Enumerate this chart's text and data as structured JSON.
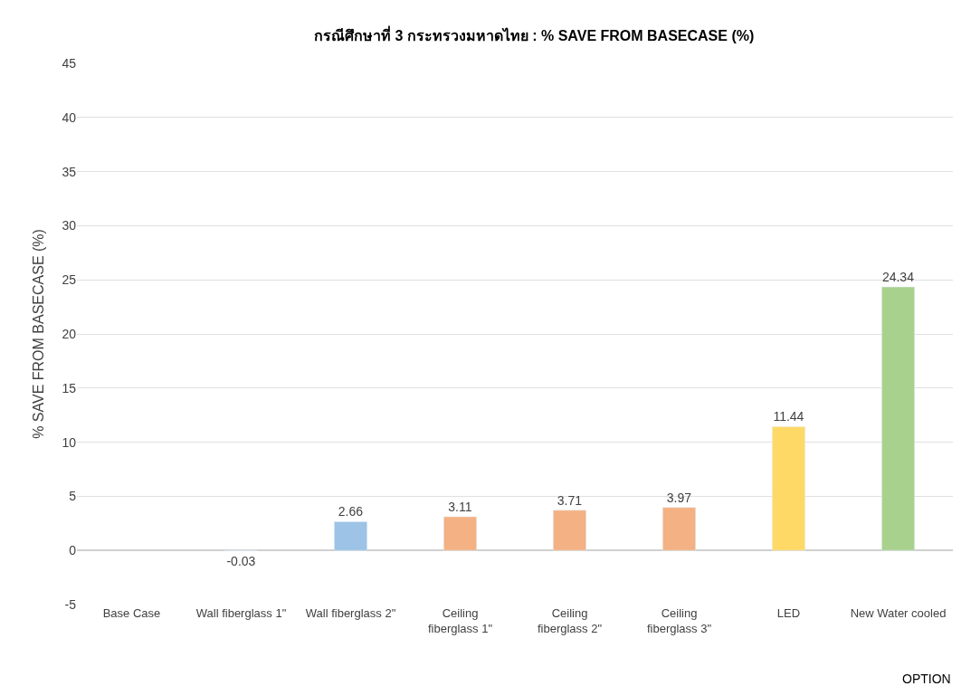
{
  "chart_data": {
    "type": "bar",
    "title": "กรณีศึกษาที่ 3 กระทรวงมหาดไทย : % SAVE FROM BASECASE (%)",
    "xlabel": "OPTION",
    "ylabel": "% SAVE FROM BASECASE (%)",
    "categories": [
      "Base Case",
      "Wall fiberglass 1\"",
      "Wall fiberglass 2\"",
      "Ceiling\nfiberglass 1\"",
      "Ceiling\nfiberglass 2\"",
      "Ceiling\nfiberglass 3\"",
      "LED",
      "New Water cooled"
    ],
    "values": [
      null,
      -0.03,
      2.66,
      3.11,
      3.71,
      3.97,
      11.44,
      24.34
    ],
    "colors": [
      "#9dc3e6",
      "#9dc3e6",
      "#9dc3e6",
      "#f4b183",
      "#f4b183",
      "#f4b183",
      "#ffd966",
      "#a9d18e"
    ],
    "value_labels": [
      null,
      "-0.03",
      "2.66",
      "3.11",
      "3.71",
      "3.97",
      "11.44",
      "24.34"
    ],
    "ylim": [
      -5,
      45
    ],
    "yticks": [
      -5,
      0,
      5,
      10,
      15,
      20,
      25,
      30,
      35,
      40,
      45
    ],
    "grid": "y"
  }
}
